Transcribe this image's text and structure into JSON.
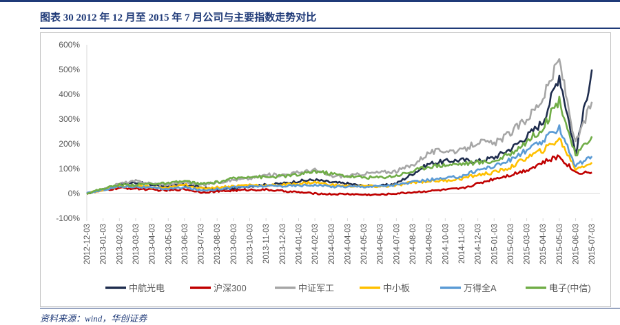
{
  "header": {
    "title": "图表 30   2012 年 12 月至 2015 年 7 月公司与主要指数走势对比"
  },
  "footer": {
    "source": "资料来源：wind，华创证券"
  },
  "colors": {
    "brand": "#1f3a78",
    "grid": "#d9d9d9",
    "axis_text": "#595959"
  },
  "chart_data": {
    "type": "line",
    "title": "",
    "xlabel": "",
    "ylabel": "",
    "y_unit": "%",
    "ylim": [
      -100,
      600
    ],
    "y_ticks": [
      600,
      500,
      400,
      300,
      200,
      100,
      0,
      -100
    ],
    "y_tick_labels": [
      "600%",
      "500%",
      "400%",
      "300%",
      "200%",
      "100%",
      "0%",
      "-100%"
    ],
    "x_ticks": [
      "2012-12-03",
      "2013-01-03",
      "2013-02-03",
      "2013-03-03",
      "2013-04-03",
      "2013-05-03",
      "2013-06-03",
      "2013-07-03",
      "2013-08-03",
      "2013-09-03",
      "2013-10-03",
      "2013-11-03",
      "2013-12-03",
      "2014-01-03",
      "2014-02-03",
      "2014-03-03",
      "2014-04-03",
      "2014-05-03",
      "2014-06-03",
      "2014-07-03",
      "2014-08-03",
      "2014-09-03",
      "2014-10-03",
      "2014-11-03",
      "2014-12-03",
      "2015-01-03",
      "2015-02-03",
      "2015-03-03",
      "2015-04-03",
      "2015-05-03",
      "2015-06-03",
      "2015-07-03"
    ],
    "legend_position": "bottom",
    "series": [
      {
        "name": "中航光电",
        "color": "#1f2d4e",
        "values": [
          0,
          15,
          35,
          45,
          35,
          30,
          35,
          25,
          15,
          20,
          30,
          35,
          40,
          50,
          55,
          45,
          40,
          30,
          30,
          40,
          80,
          120,
          130,
          135,
          130,
          145,
          180,
          230,
          290,
          480,
          160,
          500
        ]
      },
      {
        "name": "沪深300",
        "color": "#c00000",
        "values": [
          0,
          12,
          22,
          20,
          15,
          12,
          18,
          5,
          8,
          12,
          15,
          15,
          10,
          5,
          0,
          -3,
          -2,
          -5,
          -5,
          0,
          5,
          10,
          15,
          20,
          40,
          60,
          75,
          95,
          125,
          150,
          85,
          85
        ]
      },
      {
        "name": "中证军工",
        "color": "#a6a6a6",
        "values": [
          0,
          15,
          40,
          50,
          40,
          35,
          45,
          35,
          45,
          55,
          60,
          75,
          75,
          85,
          95,
          70,
          70,
          80,
          85,
          90,
          115,
          165,
          175,
          170,
          210,
          200,
          245,
          300,
          385,
          540,
          200,
          370
        ]
      },
      {
        "name": "中小板",
        "color": "#ffc000",
        "values": [
          0,
          15,
          28,
          30,
          25,
          22,
          35,
          20,
          25,
          30,
          35,
          32,
          35,
          40,
          45,
          35,
          30,
          30,
          28,
          32,
          45,
          50,
          52,
          60,
          75,
          85,
          105,
          145,
          175,
          220,
          100,
          125
        ]
      },
      {
        "name": "万得全A",
        "color": "#5b9bd5",
        "values": [
          0,
          15,
          28,
          28,
          22,
          18,
          25,
          12,
          18,
          25,
          28,
          30,
          30,
          32,
          35,
          28,
          28,
          28,
          30,
          35,
          45,
          55,
          60,
          70,
          95,
          110,
          135,
          175,
          210,
          270,
          110,
          150
        ]
      },
      {
        "name": "电子(中信)",
        "color": "#70ad47",
        "values": [
          0,
          20,
          35,
          35,
          40,
          40,
          50,
          38,
          45,
          60,
          70,
          65,
          70,
          75,
          90,
          80,
          70,
          65,
          65,
          72,
          90,
          110,
          115,
          120,
          125,
          130,
          160,
          210,
          265,
          380,
          150,
          230
        ]
      }
    ]
  }
}
